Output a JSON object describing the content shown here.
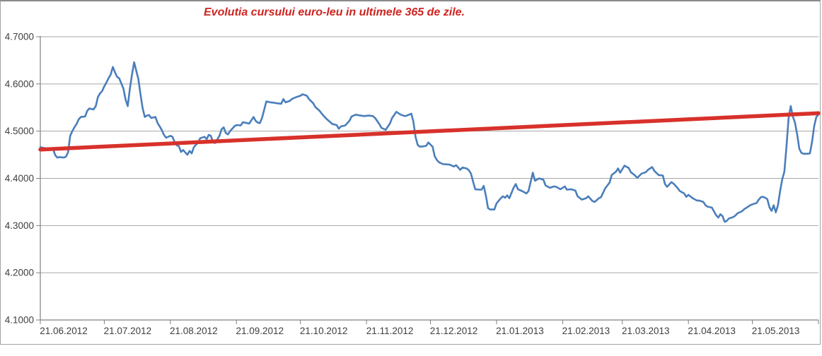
{
  "title": {
    "text": "Evolutia cursului euro-leu in ultimele 365 de zile.",
    "color": "#cf2420"
  },
  "colors": {
    "rate_line": "#4a7ebb",
    "trend_line": "#d8312b",
    "gridline": "#a6a6a6",
    "axis": "#808080",
    "tick_label_text": "#3f3f3f",
    "frame_border": "#a3a3a3"
  },
  "chart_data": {
    "type": "line",
    "title": "Evolutia cursului euro-leu in ultimele 365 de zile.",
    "grid": "horizontal-only",
    "legend": "none",
    "x_axis": {
      "unit": "date",
      "range_days": [
        0,
        365
      ],
      "tick_days": [
        0,
        30,
        61,
        92,
        122,
        153,
        183,
        214,
        245,
        273,
        304,
        334
      ],
      "tick_labels": [
        "21.06.2012",
        "21.07.2012",
        "21.08.2012",
        "21.09.2012",
        "21.10.2012",
        "21.11.2012",
        "21.12.2012",
        "21.01.2013",
        "21.02.2013",
        "21.03.2013",
        "21.04.2013",
        "21.05.2013"
      ],
      "end_tick_day": 365
    },
    "y_axis": {
      "min": 4.1,
      "max": 4.7,
      "step": 0.1,
      "tick_values": [
        4.7,
        4.6,
        4.5,
        4.4,
        4.3,
        4.2,
        4.1
      ],
      "tick_labels": [
        "4.7000",
        "4.6000",
        "4.5000",
        "4.4000",
        "4.3000",
        "4.2000",
        "4.1000"
      ]
    },
    "series": [
      {
        "id": "rate",
        "style": "thin-line",
        "points": [
          [
            0,
            4.466
          ],
          [
            2,
            4.464
          ],
          [
            4,
            4.463
          ],
          [
            6,
            4.462
          ],
          [
            7,
            4.449
          ],
          [
            8,
            4.444
          ],
          [
            9,
            4.445
          ],
          [
            11,
            4.444
          ],
          [
            12,
            4.446
          ],
          [
            13,
            4.455
          ],
          [
            14,
            4.49
          ],
          [
            15,
            4.5
          ],
          [
            16,
            4.508
          ],
          [
            17,
            4.515
          ],
          [
            18,
            4.525
          ],
          [
            19,
            4.53
          ],
          [
            21,
            4.531
          ],
          [
            22,
            4.543
          ],
          [
            23,
            4.548
          ],
          [
            25,
            4.546
          ],
          [
            26,
            4.553
          ],
          [
            27,
            4.572
          ],
          [
            28,
            4.58
          ],
          [
            29,
            4.585
          ],
          [
            30,
            4.595
          ],
          [
            31,
            4.603
          ],
          [
            32,
            4.612
          ],
          [
            33,
            4.62
          ],
          [
            34,
            4.636
          ],
          [
            35,
            4.625
          ],
          [
            36,
            4.615
          ],
          [
            37,
            4.612
          ],
          [
            39,
            4.59
          ],
          [
            40,
            4.567
          ],
          [
            41,
            4.553
          ],
          [
            42,
            4.59
          ],
          [
            43,
            4.62
          ],
          [
            44,
            4.646
          ],
          [
            46,
            4.61
          ],
          [
            47,
            4.578
          ],
          [
            48,
            4.548
          ],
          [
            49,
            4.53
          ],
          [
            50,
            4.533
          ],
          [
            51,
            4.534
          ],
          [
            52,
            4.528
          ],
          [
            54,
            4.53
          ],
          [
            55,
            4.517
          ],
          [
            56,
            4.51
          ],
          [
            57,
            4.502
          ],
          [
            58,
            4.492
          ],
          [
            59,
            4.486
          ],
          [
            61,
            4.49
          ],
          [
            62,
            4.488
          ],
          [
            63,
            4.477
          ],
          [
            64,
            4.47
          ],
          [
            65,
            4.468
          ],
          [
            66,
            4.456
          ],
          [
            67,
            4.46
          ],
          [
            69,
            4.45
          ],
          [
            70,
            4.458
          ],
          [
            71,
            4.453
          ],
          [
            72,
            4.466
          ],
          [
            74,
            4.476
          ],
          [
            75,
            4.485
          ],
          [
            77,
            4.488
          ],
          [
            78,
            4.483
          ],
          [
            79,
            4.492
          ],
          [
            80,
            4.49
          ],
          [
            81,
            4.476
          ],
          [
            82,
            4.475
          ],
          [
            84,
            4.49
          ],
          [
            85,
            4.504
          ],
          [
            86,
            4.508
          ],
          [
            87,
            4.496
          ],
          [
            88,
            4.493
          ],
          [
            89,
            4.5
          ],
          [
            91,
            4.51
          ],
          [
            92,
            4.513
          ],
          [
            94,
            4.512
          ],
          [
            95,
            4.519
          ],
          [
            97,
            4.517
          ],
          [
            98,
            4.516
          ],
          [
            100,
            4.53
          ],
          [
            101,
            4.522
          ],
          [
            102,
            4.518
          ],
          [
            103,
            4.517
          ],
          [
            104,
            4.528
          ],
          [
            105,
            4.545
          ],
          [
            106,
            4.563
          ],
          [
            108,
            4.561
          ],
          [
            110,
            4.56
          ],
          [
            111,
            4.559
          ],
          [
            113,
            4.558
          ],
          [
            114,
            4.568
          ],
          [
            115,
            4.561
          ],
          [
            117,
            4.564
          ],
          [
            118,
            4.568
          ],
          [
            120,
            4.572
          ],
          [
            122,
            4.575
          ],
          [
            123,
            4.578
          ],
          [
            125,
            4.575
          ],
          [
            126,
            4.568
          ],
          [
            128,
            4.559
          ],
          [
            129,
            4.551
          ],
          [
            131,
            4.543
          ],
          [
            132,
            4.537
          ],
          [
            134,
            4.527
          ],
          [
            136,
            4.519
          ],
          [
            137,
            4.515
          ],
          [
            139,
            4.513
          ],
          [
            140,
            4.505
          ],
          [
            141,
            4.51
          ],
          [
            143,
            4.512
          ],
          [
            145,
            4.522
          ],
          [
            146,
            4.531
          ],
          [
            148,
            4.535
          ],
          [
            150,
            4.533
          ],
          [
            152,
            4.532
          ],
          [
            154,
            4.533
          ],
          [
            156,
            4.532
          ],
          [
            157,
            4.528
          ],
          [
            159,
            4.515
          ],
          [
            160,
            4.507
          ],
          [
            162,
            4.503
          ],
          [
            164,
            4.516
          ],
          [
            165,
            4.528
          ],
          [
            167,
            4.541
          ],
          [
            169,
            4.535
          ],
          [
            171,
            4.532
          ],
          [
            172,
            4.533
          ],
          [
            174,
            4.537
          ],
          [
            175,
            4.52
          ],
          [
            176,
            4.488
          ],
          [
            177,
            4.471
          ],
          [
            178,
            4.467
          ],
          [
            180,
            4.468
          ],
          [
            181,
            4.469
          ],
          [
            182,
            4.476
          ],
          [
            184,
            4.467
          ],
          [
            185,
            4.447
          ],
          [
            186,
            4.439
          ],
          [
            187,
            4.434
          ],
          [
            189,
            4.43
          ],
          [
            190,
            4.43
          ],
          [
            192,
            4.429
          ],
          [
            194,
            4.425
          ],
          [
            195,
            4.428
          ],
          [
            197,
            4.418
          ],
          [
            198,
            4.423
          ],
          [
            200,
            4.421
          ],
          [
            201,
            4.417
          ],
          [
            202,
            4.41
          ],
          [
            203,
            4.393
          ],
          [
            204,
            4.377
          ],
          [
            206,
            4.376
          ],
          [
            207,
            4.376
          ],
          [
            208,
            4.384
          ],
          [
            209,
            4.363
          ],
          [
            210,
            4.337
          ],
          [
            211,
            4.334
          ],
          [
            213,
            4.334
          ],
          [
            214,
            4.347
          ],
          [
            216,
            4.358
          ],
          [
            217,
            4.362
          ],
          [
            218,
            4.359
          ],
          [
            219,
            4.364
          ],
          [
            220,
            4.358
          ],
          [
            222,
            4.38
          ],
          [
            223,
            4.388
          ],
          [
            224,
            4.377
          ],
          [
            226,
            4.373
          ],
          [
            228,
            4.368
          ],
          [
            229,
            4.373
          ],
          [
            231,
            4.412
          ],
          [
            232,
            4.395
          ],
          [
            234,
            4.4
          ],
          [
            236,
            4.397
          ],
          [
            237,
            4.385
          ],
          [
            239,
            4.38
          ],
          [
            241,
            4.383
          ],
          [
            242,
            4.382
          ],
          [
            244,
            4.377
          ],
          [
            246,
            4.383
          ],
          [
            247,
            4.376
          ],
          [
            249,
            4.377
          ],
          [
            251,
            4.374
          ],
          [
            252,
            4.362
          ],
          [
            254,
            4.355
          ],
          [
            256,
            4.358
          ],
          [
            257,
            4.362
          ],
          [
            259,
            4.352
          ],
          [
            260,
            4.35
          ],
          [
            262,
            4.358
          ],
          [
            263,
            4.36
          ],
          [
            265,
            4.379
          ],
          [
            267,
            4.391
          ],
          [
            268,
            4.407
          ],
          [
            270,
            4.414
          ],
          [
            271,
            4.421
          ],
          [
            272,
            4.412
          ],
          [
            274,
            4.427
          ],
          [
            276,
            4.422
          ],
          [
            277,
            4.413
          ],
          [
            279,
            4.406
          ],
          [
            280,
            4.401
          ],
          [
            282,
            4.41
          ],
          [
            284,
            4.413
          ],
          [
            285,
            4.418
          ],
          [
            287,
            4.424
          ],
          [
            288,
            4.416
          ],
          [
            290,
            4.407
          ],
          [
            292,
            4.406
          ],
          [
            293,
            4.388
          ],
          [
            294,
            4.382
          ],
          [
            296,
            4.392
          ],
          [
            297,
            4.389
          ],
          [
            299,
            4.379
          ],
          [
            300,
            4.373
          ],
          [
            302,
            4.368
          ],
          [
            303,
            4.361
          ],
          [
            304,
            4.365
          ],
          [
            306,
            4.358
          ],
          [
            308,
            4.353
          ],
          [
            309,
            4.353
          ],
          [
            311,
            4.35
          ],
          [
            312,
            4.343
          ],
          [
            313,
            4.34
          ],
          [
            315,
            4.338
          ],
          [
            317,
            4.322
          ],
          [
            318,
            4.317
          ],
          [
            319,
            4.324
          ],
          [
            320,
            4.32
          ],
          [
            321,
            4.308
          ],
          [
            322,
            4.31
          ],
          [
            323,
            4.315
          ],
          [
            325,
            4.318
          ],
          [
            326,
            4.321
          ],
          [
            327,
            4.326
          ],
          [
            329,
            4.33
          ],
          [
            330,
            4.334
          ],
          [
            332,
            4.34
          ],
          [
            333,
            4.343
          ],
          [
            334,
            4.345
          ],
          [
            336,
            4.348
          ],
          [
            337,
            4.355
          ],
          [
            338,
            4.36
          ],
          [
            339,
            4.361
          ],
          [
            340,
            4.359
          ],
          [
            341,
            4.356
          ],
          [
            342,
            4.339
          ],
          [
            343,
            4.331
          ],
          [
            344,
            4.343
          ],
          [
            345,
            4.328
          ],
          [
            346,
            4.343
          ],
          [
            347,
            4.373
          ],
          [
            348,
            4.398
          ],
          [
            349,
            4.414
          ],
          [
            350,
            4.468
          ],
          [
            351,
            4.528
          ],
          [
            352,
            4.553
          ],
          [
            353,
            4.531
          ],
          [
            354,
            4.518
          ],
          [
            355,
            4.493
          ],
          [
            356,
            4.463
          ],
          [
            357,
            4.454
          ],
          [
            358,
            4.452
          ],
          [
            360,
            4.452
          ],
          [
            361,
            4.453
          ],
          [
            362,
            4.478
          ],
          [
            363,
            4.511
          ],
          [
            364,
            4.53
          ],
          [
            365,
            4.535
          ]
        ]
      },
      {
        "id": "trend",
        "style": "thick-line",
        "points": [
          [
            0,
            4.461
          ],
          [
            365,
            4.538
          ]
        ]
      }
    ]
  }
}
